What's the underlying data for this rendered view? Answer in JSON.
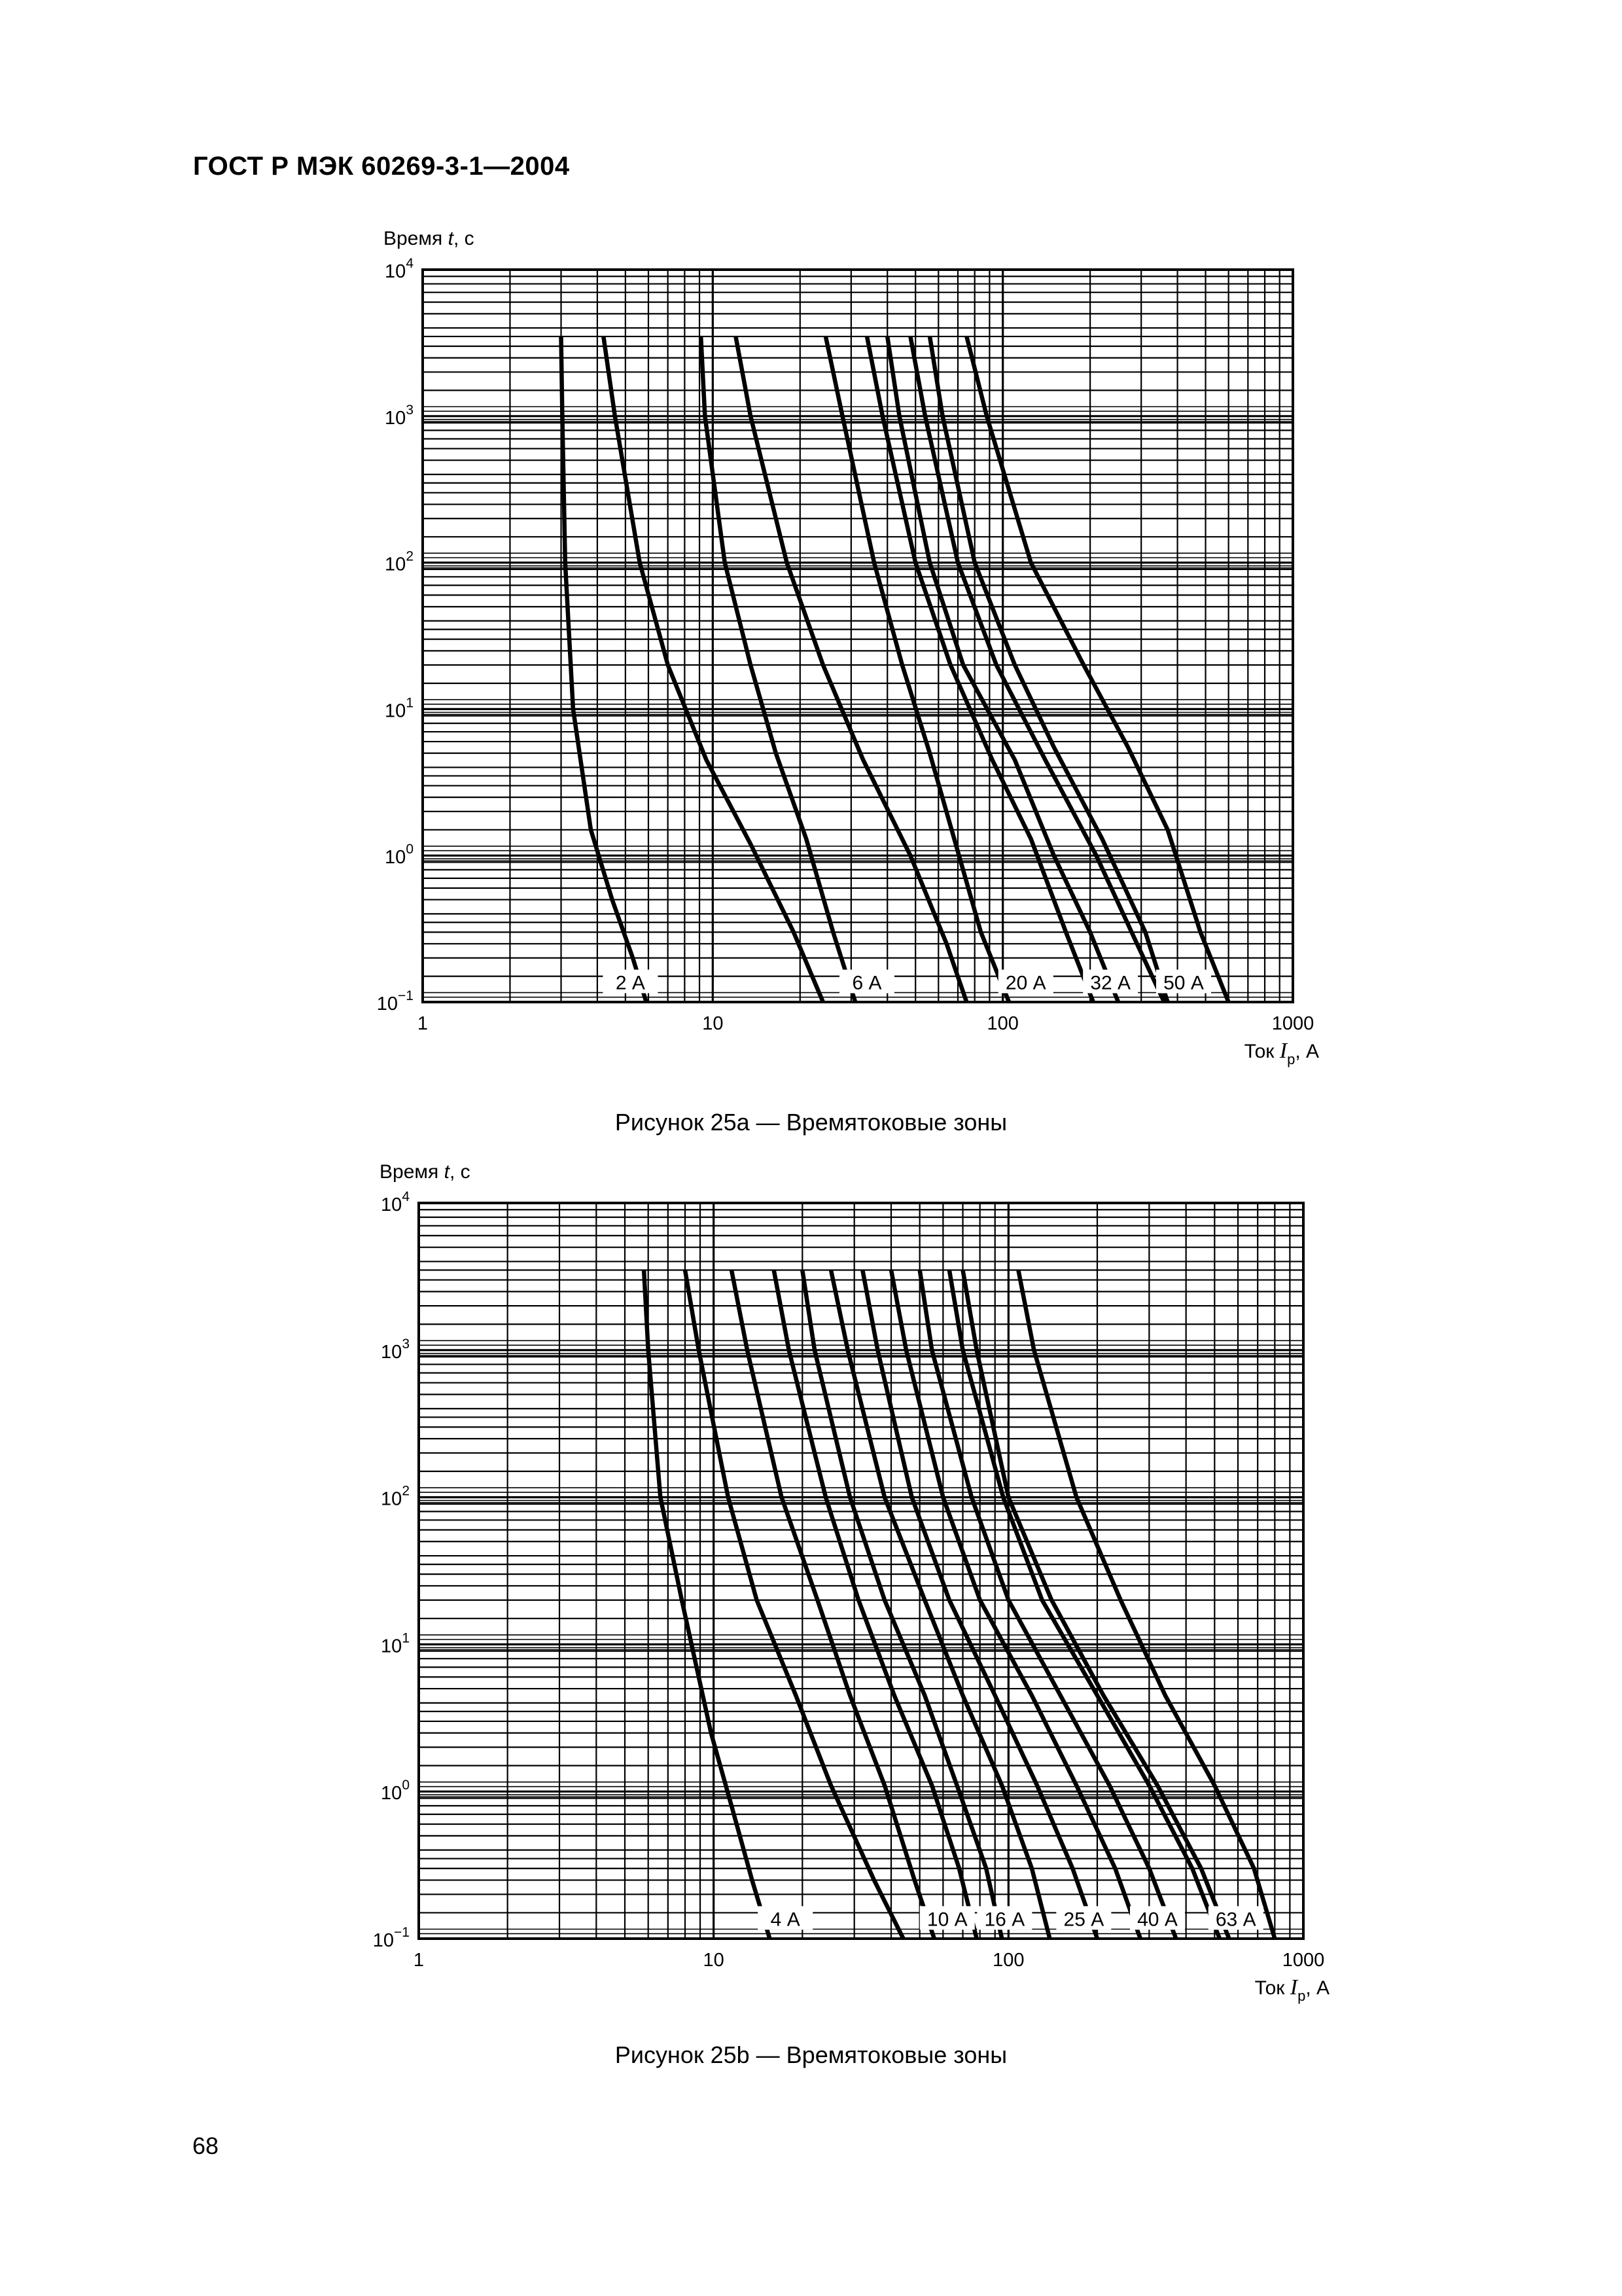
{
  "header": {
    "standard": "ГОСТ Р МЭК 60269-3-1—2004"
  },
  "page_number": "68",
  "chart_data": [
    {
      "type": "line",
      "caption": "Рисунок 25a — Времятоковые зоны",
      "ylabel_prefix": "Время ",
      "ylabel_var": "t",
      "ylabel_suffix": ", с",
      "xlabel_prefix": "Ток ",
      "xlabel_var": "I",
      "xlabel_sub": "p",
      "xlabel_suffix": ", А",
      "x_scale": "log",
      "y_scale": "log",
      "xlim": [
        1,
        1000
      ],
      "ylim": [
        0.1,
        10000
      ],
      "x_ticks": [
        {
          "value": 1,
          "label": "1"
        },
        {
          "value": 10,
          "label": "10"
        },
        {
          "value": 100,
          "label": "100"
        },
        {
          "value": 1000,
          "label": "1000"
        }
      ],
      "y_ticks": [
        {
          "value": 0.1,
          "base": "10",
          "exp": "−1"
        },
        {
          "value": 1,
          "base": "10",
          "exp": "0"
        },
        {
          "value": 10,
          "base": "10",
          "exp": "1"
        },
        {
          "value": 100,
          "base": "10",
          "exp": "2"
        },
        {
          "value": 1000,
          "base": "10",
          "exp": "3"
        },
        {
          "value": 10000,
          "base": "10",
          "exp": "4"
        }
      ],
      "grid": true,
      "series": [
        {
          "name": "2 А",
          "label_at": {
            "x": 5.2,
            "y": 0.13
          },
          "curves": [
            {
              "x": [
                3.0,
                3.03,
                3.1,
                3.3,
                3.8,
                4.5,
                5.3,
                5.9
              ],
              "y": [
                3500,
                1000,
                100,
                10,
                1.5,
                0.5,
                0.2,
                0.1
              ]
            },
            {
              "x": [
                4.2,
                4.6,
                5.6,
                7.0,
                9.5,
                13.5,
                19.0,
                24.0
              ],
              "y": [
                3500,
                1000,
                100,
                20,
                4.5,
                1.2,
                0.3,
                0.1
              ]
            }
          ]
        },
        {
          "name": "6 А",
          "label_at": {
            "x": 34,
            "y": 0.13
          },
          "curves": [
            {
              "x": [
                9.1,
                9.4,
                11.0,
                13.5,
                16.5,
                21.0,
                26.0,
                31.0
              ],
              "y": [
                3500,
                1000,
                100,
                20,
                5,
                1.3,
                0.3,
                0.1
              ]
            },
            {
              "x": [
                12.0,
                13.5,
                18.0,
                24.0,
                33.0,
                48.0,
                64.0,
                75.0
              ],
              "y": [
                3500,
                1000,
                100,
                20,
                4.5,
                1.0,
                0.25,
                0.1
              ]
            }
          ]
        },
        {
          "name": "20 А",
          "label_at": {
            "x": 120,
            "y": 0.13
          },
          "curves": [
            {
              "x": [
                24.5,
                28.0,
                36.0,
                45.0,
                56.0,
                68.0,
                84.0,
                105.0
              ],
              "y": [
                3500,
                1000,
                100,
                20,
                5,
                1.3,
                0.3,
                0.1
              ]
            },
            {
              "x": [
                34.0,
                38.5,
                50.0,
                66.0,
                92.0,
                125.0,
                165.0,
                205.0
              ],
              "y": [
                3500,
                1000,
                100,
                20,
                4.5,
                1.3,
                0.3,
                0.1
              ]
            }
          ]
        },
        {
          "name": "32 А",
          "label_at": {
            "x": 235,
            "y": 0.13
          },
          "curves": [
            {
              "x": [
                40.0,
                44.0,
                56.0,
                73.0,
                110.0,
                150.0,
                200.0,
                250.0
              ],
              "y": [
                3500,
                1000,
                100,
                20,
                4.5,
                1.0,
                0.3,
                0.1
              ]
            },
            {
              "x": [
                48.0,
                54.0,
                70.0,
                95.0,
                140.0,
                210.0,
                290.0,
                360.0
              ],
              "y": [
                3500,
                1000,
                100,
                20,
                4.5,
                1.0,
                0.25,
                0.1
              ]
            }
          ]
        },
        {
          "name": "50 А",
          "label_at": {
            "x": 420,
            "y": 0.13
          },
          "curves": [
            {
              "x": [
                56.0,
                62.0,
                80.0,
                110.0,
                150.0,
                220.0,
                310.0,
                370.0
              ],
              "y": [
                3500,
                1000,
                100,
                20,
                5.5,
                1.3,
                0.3,
                0.1
              ]
            },
            {
              "x": [
                75.0,
                88.0,
                125.0,
                190.0,
                270.0,
                370.0,
                480.0,
                600.0
              ],
              "y": [
                3500,
                1000,
                100,
                20,
                5.5,
                1.5,
                0.3,
                0.1
              ]
            }
          ]
        }
      ]
    },
    {
      "type": "line",
      "caption": "Рисунок 25b — Времятоковые зоны",
      "ylabel_prefix": "Время ",
      "ylabel_var": "t",
      "ylabel_suffix": ", с",
      "xlabel_prefix": "Ток ",
      "xlabel_var": "I",
      "xlabel_sub": "p",
      "xlabel_suffix": ", А",
      "x_scale": "log",
      "y_scale": "log",
      "xlim": [
        1,
        1000
      ],
      "ylim": [
        0.1,
        10000
      ],
      "x_ticks": [
        {
          "value": 1,
          "label": "1"
        },
        {
          "value": 10,
          "label": "10"
        },
        {
          "value": 100,
          "label": "100"
        },
        {
          "value": 1000,
          "label": "1000"
        }
      ],
      "y_ticks": [
        {
          "value": 0.1,
          "base": "10",
          "exp": "−1"
        },
        {
          "value": 1,
          "base": "10",
          "exp": "0"
        },
        {
          "value": 10,
          "base": "10",
          "exp": "1"
        },
        {
          "value": 100,
          "base": "10",
          "exp": "2"
        },
        {
          "value": 1000,
          "base": "10",
          "exp": "3"
        },
        {
          "value": 10000,
          "base": "10",
          "exp": "4"
        }
      ],
      "grid": true,
      "series": [
        {
          "name": "4 А",
          "label_at": {
            "x": 17.5,
            "y": 0.13
          },
          "curves": [
            {
              "x": [
                5.8,
                6.0,
                6.6,
                7.8,
                9.8,
                11.5,
                13.5,
                15.5
              ],
              "y": [
                3500,
                1000,
                100,
                20,
                2.5,
                0.8,
                0.25,
                0.1
              ]
            },
            {
              "x": [
                8.0,
                8.9,
                11.2,
                14.0,
                19.0,
                25.0,
                35.0,
                44.0
              ],
              "y": [
                3500,
                1000,
                100,
                20,
                4.5,
                1.1,
                0.25,
                0.1
              ]
            }
          ]
        },
        {
          "name": "10 А",
          "label_at": {
            "x": 62,
            "y": 0.13
          },
          "curves": [
            {
              "x": [
                11.5,
                13.0,
                17.0,
                22.5,
                29.0,
                38.0,
                48.0,
                56.0
              ],
              "y": [
                3500,
                1000,
                100,
                20,
                4.5,
                1.1,
                0.25,
                0.1
              ]
            },
            {
              "x": [
                16.0,
                18.0,
                24.0,
                31.0,
                41.0,
                55.0,
                68.0,
                78.0
              ],
              "y": [
                3500,
                1000,
                100,
                20,
                4.5,
                1.1,
                0.3,
                0.1
              ]
            }
          ]
        },
        {
          "name": "16 А",
          "label_at": {
            "x": 97,
            "y": 0.13
          },
          "curves": [
            {
              "x": [
                20.0,
                22.0,
                29.0,
                38.0,
                52.0,
                68.0,
                84.0,
                95.0
              ],
              "y": [
                3500,
                1000,
                100,
                20,
                4.5,
                1.0,
                0.3,
                0.1
              ]
            },
            {
              "x": [
                25.0,
                28.5,
                38.0,
                52.0,
                70.0,
                95.0,
                120.0,
                138.0
              ],
              "y": [
                3500,
                1000,
                100,
                20,
                4.5,
                1.1,
                0.3,
                0.1
              ]
            }
          ]
        },
        {
          "name": "25 А",
          "label_at": {
            "x": 180,
            "y": 0.13
          },
          "curves": [
            {
              "x": [
                32.0,
                36.0,
                47.0,
                63.0,
                90.0,
                125.0,
                165.0,
                200.0
              ],
              "y": [
                3500,
                1000,
                100,
                20,
                4.5,
                1.1,
                0.3,
                0.1
              ]
            },
            {
              "x": [
                40.0,
                45.0,
                60.0,
                80.0,
                120.0,
                170.0,
                230.0,
                280.0
              ],
              "y": [
                3500,
                1000,
                100,
                20,
                4.5,
                1.1,
                0.3,
                0.1
              ]
            }
          ]
        },
        {
          "name": "40 А",
          "label_at": {
            "x": 320,
            "y": 0.13
          },
          "curves": [
            {
              "x": [
                50.0,
                55.0,
                75.0,
                100.0,
                150.0,
                220.0,
                300.0,
                370.0
              ],
              "y": [
                3500,
                1000,
                100,
                20,
                4.5,
                1.1,
                0.3,
                0.1
              ]
            },
            {
              "x": [
                63.0,
                70.0,
                96.0,
                130.0,
                200.0,
                300.0,
                420.0,
                520.0
              ],
              "y": [
                3500,
                1000,
                100,
                20,
                4.5,
                1.1,
                0.3,
                0.1
              ]
            }
          ]
        },
        {
          "name": "63 А",
          "label_at": {
            "x": 590,
            "y": 0.13
          },
          "curves": [
            {
              "x": [
                70.0,
                78.0,
                100.0,
                140.0,
                210.0,
                320.0,
                450.0,
                560.0
              ],
              "y": [
                3500,
                1000,
                100,
                20,
                4.5,
                1.1,
                0.3,
                0.1
              ]
            },
            {
              "x": [
                108.0,
                122.0,
                170.0,
                240.0,
                340.0,
                500.0,
                680.0,
                800.0
              ],
              "y": [
                3500,
                1000,
                100,
                20,
                4.5,
                1.1,
                0.3,
                0.1
              ]
            }
          ]
        }
      ]
    }
  ]
}
